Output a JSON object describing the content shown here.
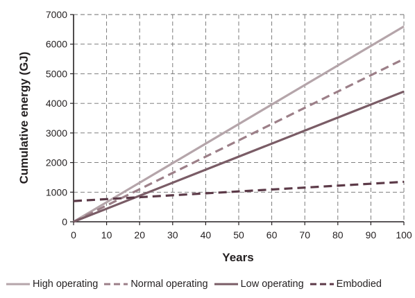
{
  "chart_data": {
    "type": "line",
    "xlabel": "Years",
    "ylabel": "Cumulative energy (GJ)",
    "xlim": [
      0,
      100
    ],
    "ylim": [
      0,
      7000
    ],
    "xticks": [
      0,
      10,
      20,
      30,
      40,
      50,
      60,
      70,
      80,
      90,
      100
    ],
    "yticks": [
      0,
      1000,
      2000,
      3000,
      4000,
      5000,
      6000,
      7000
    ],
    "grid": true,
    "legend_position": "bottom",
    "series": [
      {
        "name": "High operating",
        "color": "#b5a5aa",
        "dash": "solid",
        "x": [
          0,
          100
        ],
        "y": [
          0,
          6600
        ]
      },
      {
        "name": "Normal operating",
        "color": "#9c7f88",
        "dash": "dashed",
        "x": [
          0,
          100
        ],
        "y": [
          0,
          5500
        ]
      },
      {
        "name": "Low operating",
        "color": "#7a5c66",
        "dash": "solid",
        "x": [
          0,
          100
        ],
        "y": [
          0,
          4400
        ]
      },
      {
        "name": "Embodied",
        "color": "#5c3a48",
        "dash": "dashed",
        "x": [
          0,
          100
        ],
        "y": [
          700,
          1350
        ]
      }
    ]
  }
}
